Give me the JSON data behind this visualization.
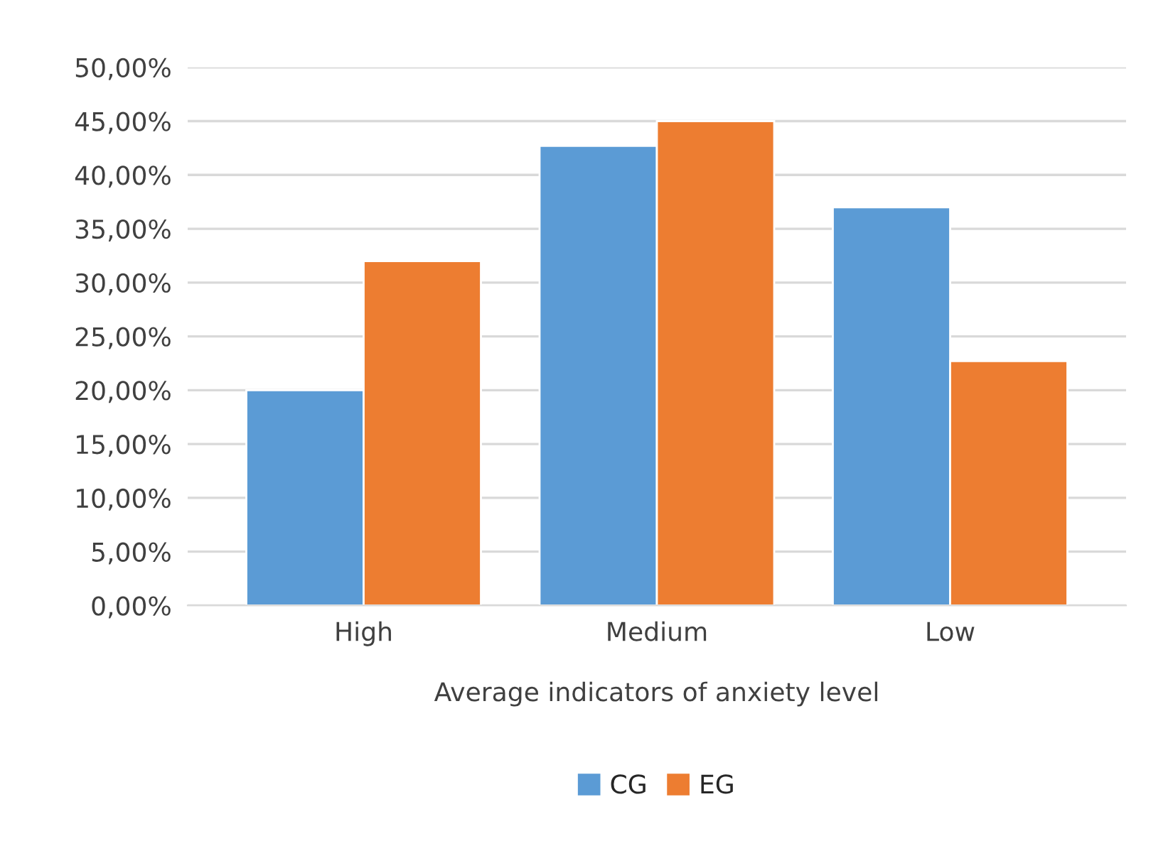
{
  "chart_data": {
    "type": "bar",
    "xlabel": "Average indicators of anxiety level",
    "categories": [
      "High",
      "Medium",
      "Low"
    ],
    "series": [
      {
        "name": "CG",
        "color": "#5b9bd5",
        "values": [
          20,
          42.7,
          37
        ]
      },
      {
        "name": "EG",
        "color": "#ed7d31",
        "values": [
          32,
          45,
          22.7
        ]
      }
    ],
    "ylim": [
      0,
      50
    ],
    "yticks": [
      {
        "value": 0,
        "label": "0,00%"
      },
      {
        "value": 5,
        "label": "5,00%"
      },
      {
        "value": 10,
        "label": "10,00%"
      },
      {
        "value": 15,
        "label": "15,00%"
      },
      {
        "value": 20,
        "label": "20,00%"
      },
      {
        "value": 25,
        "label": "25,00%"
      },
      {
        "value": 30,
        "label": "30,00%"
      },
      {
        "value": 35,
        "label": "35,00%"
      },
      {
        "value": 40,
        "label": "40,00%"
      },
      {
        "value": 45,
        "label": "45,00%"
      },
      {
        "value": 50,
        "label": "50,00%"
      }
    ],
    "grid": "y",
    "legend": "bottom"
  }
}
